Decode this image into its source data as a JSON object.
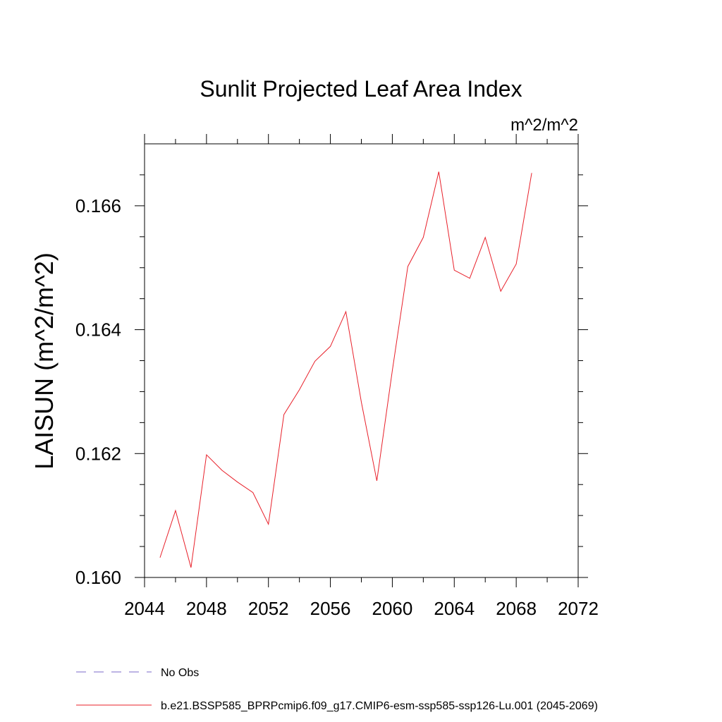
{
  "chart_data": {
    "type": "line",
    "title": "Sunlit Projected Leaf Area Index",
    "units_label": "m^2/m^2",
    "ylabel": "LAISUN  (m^2/m^2)",
    "xlabel": "",
    "xlim": [
      2044,
      2072
    ],
    "ylim": [
      0.16,
      0.167
    ],
    "x_ticks": [
      2044,
      2048,
      2052,
      2056,
      2060,
      2064,
      2068,
      2072
    ],
    "x_tick_labels": [
      "2044",
      "2048",
      "2052",
      "2056",
      "2060",
      "2064",
      "2068",
      "2072"
    ],
    "x_minor_step": 2,
    "y_ticks": [
      0.16,
      0.162,
      0.164,
      0.166
    ],
    "y_tick_labels": [
      "0.160",
      "0.162",
      "0.164",
      "0.166"
    ],
    "y_minor_step": 0.0005,
    "grid": false,
    "legend_position": "bottom",
    "series": [
      {
        "name": "No Obs",
        "color": "#7b68c8",
        "dash": "dashed",
        "x": [],
        "values": []
      },
      {
        "name": "b.e21.BSSP585_BPRPcmip6.f09_g17.CMIP6-esm-ssp585-ssp126-Lu.001 (2045-2069)",
        "color": "#e8202a",
        "dash": "solid",
        "x": [
          2045,
          2046,
          2047,
          2048,
          2049,
          2050,
          2051,
          2052,
          2053,
          2054,
          2055,
          2056,
          2057,
          2058,
          2059,
          2060,
          2061,
          2062,
          2063,
          2064,
          2065,
          2066,
          2067,
          2068,
          2069
        ],
        "values": [
          0.16032,
          0.16108,
          0.16016,
          0.16198,
          0.16173,
          0.16154,
          0.16137,
          0.16086,
          0.16263,
          0.16303,
          0.16349,
          0.16373,
          0.16429,
          0.16283,
          0.16156,
          0.16334,
          0.16502,
          0.16549,
          0.16655,
          0.16496,
          0.16483,
          0.16549,
          0.16462,
          0.16506,
          0.16653
        ]
      }
    ]
  }
}
